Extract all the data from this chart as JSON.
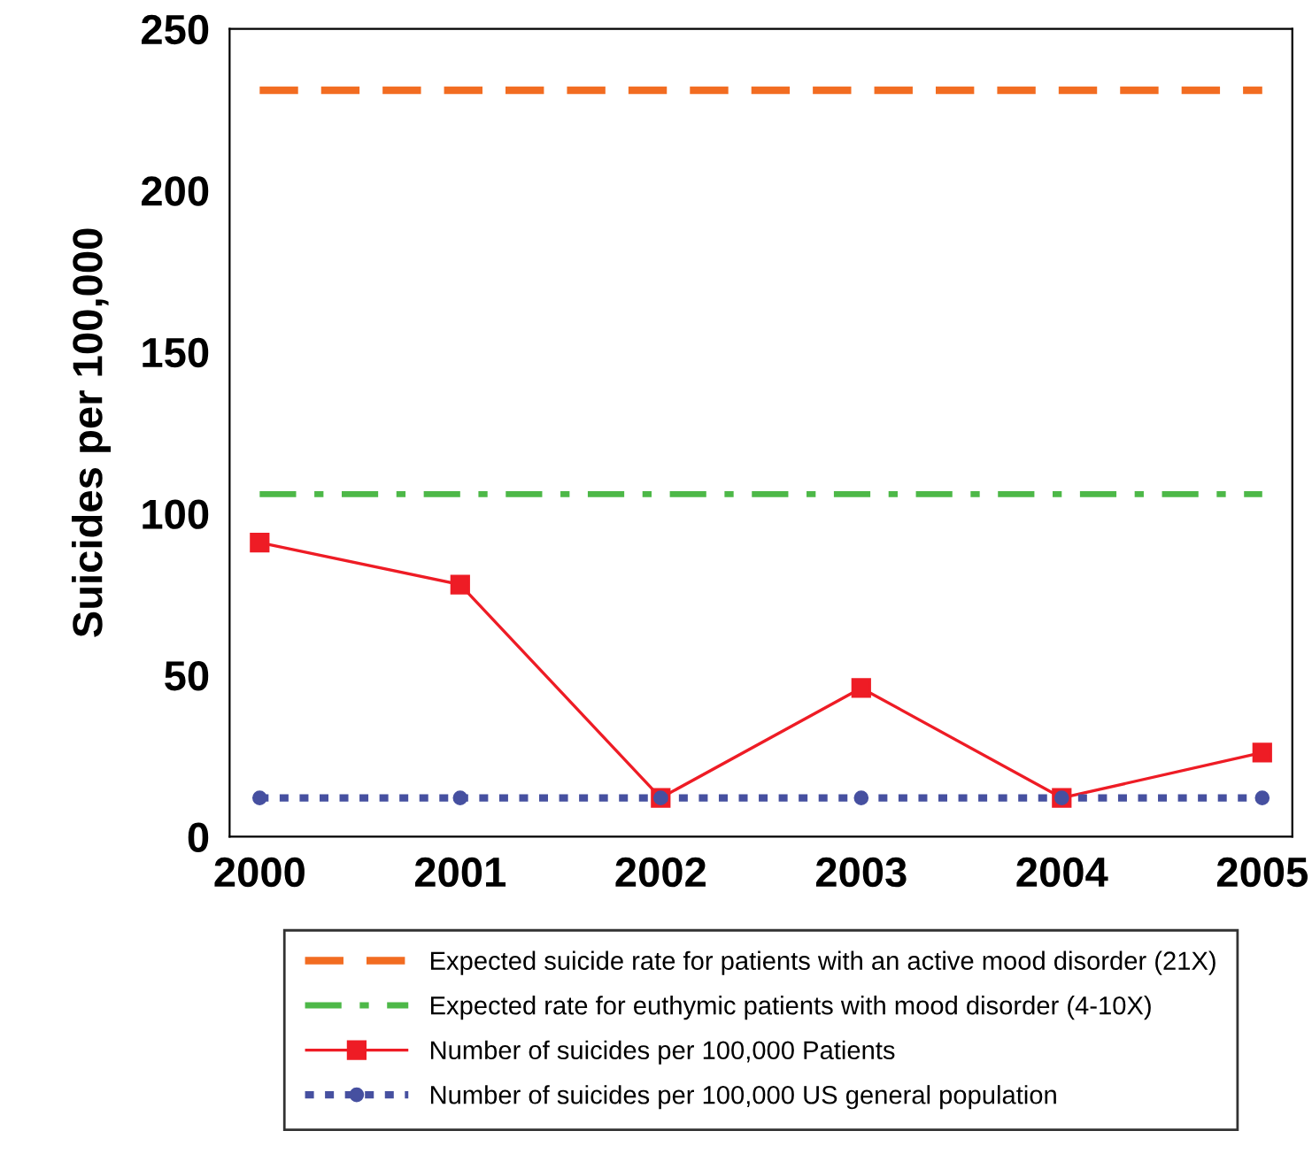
{
  "chart_data": {
    "type": "line",
    "ylabel": "Suicides per 100,000",
    "categories": [
      "2000",
      "2001",
      "2002",
      "2003",
      "2004",
      "2005"
    ],
    "series": [
      {
        "name": "Expected suicide rate for patients with an active mood disorder (21X)",
        "color": "#f26c21",
        "values": [
          231,
          231,
          231,
          231,
          231,
          231
        ],
        "line_style": "dashed",
        "marker": "none"
      },
      {
        "name": "Expected rate for euthymic patients with mood disorder (4-10X)",
        "color": "#4db848",
        "values": [
          106,
          106,
          106,
          106,
          106,
          106
        ],
        "line_style": "dashdot",
        "marker": "none"
      },
      {
        "name": "Number of suicides per 100,000 Patients",
        "color": "#ee1c25",
        "values": [
          91,
          78,
          12,
          46,
          12,
          26
        ],
        "line_style": "solid",
        "marker": "square"
      },
      {
        "name": "Number of suicides per 100,000 US general population",
        "color": "#4650a0",
        "values": [
          12,
          12,
          12,
          12,
          12,
          12
        ],
        "line_style": "dotted",
        "marker": "circle"
      }
    ],
    "ylim": [
      0,
      250
    ],
    "yticks": [
      0,
      50,
      100,
      150,
      200,
      250
    ],
    "grid": false,
    "legend": "bottom"
  }
}
